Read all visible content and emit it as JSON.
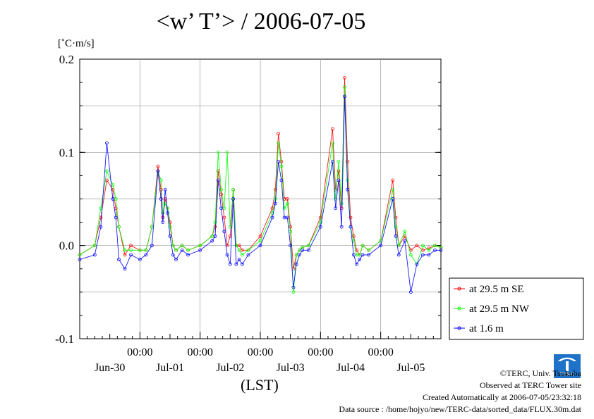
{
  "header": {
    "title": "<w’ T’> / 2006-07-05",
    "unit": "[˚C·m/s]"
  },
  "footer": {
    "xaxis_label": "(LST)",
    "copyright": "©TERC, Univ. Tsukuba",
    "observed": "Observed at TERC Tower site",
    "created": "Created Automatically at 2006-07-05/23:32:18",
    "source": "Data source : /home/hojyo/new/TERC-data/sorted_data/FLUX.30m.dat",
    "logo_text": "TERC"
  },
  "chart_data": {
    "type": "line",
    "title": "<w’ T’> / 2006-07-05",
    "ylabel": "[˚C·m/s]",
    "xlabel": "(LST)",
    "x_range_days": [
      0,
      6
    ],
    "ylim": [
      -0.1,
      0.2
    ],
    "yticks": [
      -0.1,
      0.0,
      0.1,
      0.2
    ],
    "ytick_labels": [
      "-0.1",
      "0.0",
      "0.1",
      "0.2"
    ],
    "xticks_days": [
      1,
      2,
      3,
      4,
      5
    ],
    "xtick_time_labels": [
      "00:00",
      "00:00",
      "00:00",
      "00:00",
      "00:00"
    ],
    "xtick_date_labels": [
      "Jun-30",
      "Jul-01",
      "Jul-02",
      "Jul-03",
      "Jul-04",
      "Jul-05"
    ],
    "grid": true,
    "legend_position": "right-bottom",
    "x_days": [
      0.0,
      0.25,
      0.35,
      0.45,
      0.55,
      0.6,
      0.65,
      0.75,
      0.85,
      1.0,
      1.1,
      1.2,
      1.3,
      1.35,
      1.38,
      1.42,
      1.46,
      1.5,
      1.55,
      1.6,
      1.7,
      1.8,
      2.0,
      2.2,
      2.25,
      2.3,
      2.35,
      2.4,
      2.45,
      2.5,
      2.55,
      2.6,
      2.65,
      2.7,
      2.8,
      3.0,
      3.2,
      3.25,
      3.3,
      3.35,
      3.4,
      3.45,
      3.5,
      3.55,
      3.6,
      3.65,
      3.7,
      3.8,
      4.0,
      4.2,
      4.25,
      4.3,
      4.35,
      4.4,
      4.45,
      4.5,
      4.55,
      4.6,
      4.65,
      4.7,
      4.8,
      5.0,
      5.2,
      5.25,
      5.3,
      5.4,
      5.5,
      5.6,
      5.7,
      5.8,
      5.9,
      6.0
    ],
    "series": [
      {
        "name": "at 29.5 m SE",
        "color": "#ff0000",
        "values": [
          -0.01,
          0.0,
          0.03,
          0.07,
          0.06,
          0.04,
          0.02,
          -0.01,
          0.0,
          -0.005,
          -0.005,
          0.02,
          0.085,
          0.06,
          0.03,
          0.05,
          0.04,
          0.025,
          0.0,
          -0.005,
          0.0,
          -0.005,
          0.0,
          0.01,
          0.02,
          0.08,
          0.055,
          0.03,
          0.0,
          0.01,
          0.06,
          0.0,
          0.0,
          -0.005,
          -0.005,
          0.01,
          0.04,
          0.06,
          0.12,
          0.09,
          0.05,
          0.05,
          0.02,
          -0.025,
          -0.01,
          -0.005,
          -0.002,
          0.0,
          0.03,
          0.125,
          0.06,
          0.08,
          0.04,
          0.18,
          0.09,
          0.03,
          0.01,
          -0.005,
          -0.01,
          0.0,
          -0.005,
          0.005,
          0.07,
          0.03,
          0.0,
          0.01,
          -0.005,
          0.0,
          -0.005,
          -0.003,
          0.0,
          -0.002
        ]
      },
      {
        "name": "at 29.5 m NW",
        "color": "#00ff00",
        "values": [
          -0.01,
          0.0,
          0.04,
          0.08,
          0.065,
          0.05,
          0.02,
          -0.005,
          -0.005,
          -0.005,
          -0.005,
          0.02,
          0.08,
          0.07,
          0.035,
          0.045,
          0.04,
          0.02,
          0.0,
          -0.005,
          0.0,
          -0.005,
          0.0,
          0.01,
          0.025,
          0.1,
          0.06,
          0.04,
          0.1,
          0.02,
          0.06,
          0.0,
          -0.005,
          -0.01,
          -0.005,
          0.005,
          0.035,
          0.05,
          0.11,
          0.085,
          0.04,
          0.045,
          0.015,
          -0.05,
          -0.01,
          -0.005,
          -0.002,
          0.0,
          0.025,
          0.11,
          0.05,
          0.09,
          0.045,
          0.17,
          0.07,
          0.02,
          0.005,
          -0.01,
          -0.01,
          0.0,
          -0.005,
          0.005,
          0.06,
          0.02,
          0.0,
          0.015,
          -0.01,
          -0.02,
          0.0,
          -0.005,
          0.0,
          -0.002
        ]
      },
      {
        "name": "at 1.6 m",
        "color": "#0000ff",
        "values": [
          -0.015,
          -0.01,
          0.02,
          0.11,
          0.05,
          0.03,
          -0.015,
          -0.025,
          -0.01,
          -0.015,
          -0.01,
          0.0,
          0.08,
          0.05,
          0.025,
          0.06,
          0.035,
          0.01,
          -0.01,
          -0.015,
          -0.005,
          -0.01,
          -0.005,
          0.005,
          0.01,
          0.07,
          0.04,
          0.015,
          -0.01,
          -0.02,
          0.05,
          -0.02,
          -0.015,
          -0.02,
          -0.01,
          0.0,
          0.03,
          0.045,
          0.09,
          0.07,
          0.03,
          0.03,
          0.0,
          -0.045,
          -0.02,
          -0.01,
          -0.005,
          -0.005,
          0.02,
          0.09,
          0.04,
          0.07,
          0.02,
          0.16,
          0.06,
          0.02,
          -0.01,
          -0.02,
          -0.015,
          -0.01,
          -0.01,
          0.0,
          0.05,
          0.01,
          -0.01,
          0.005,
          -0.05,
          -0.02,
          -0.01,
          -0.01,
          -0.005,
          -0.005
        ]
      }
    ]
  }
}
